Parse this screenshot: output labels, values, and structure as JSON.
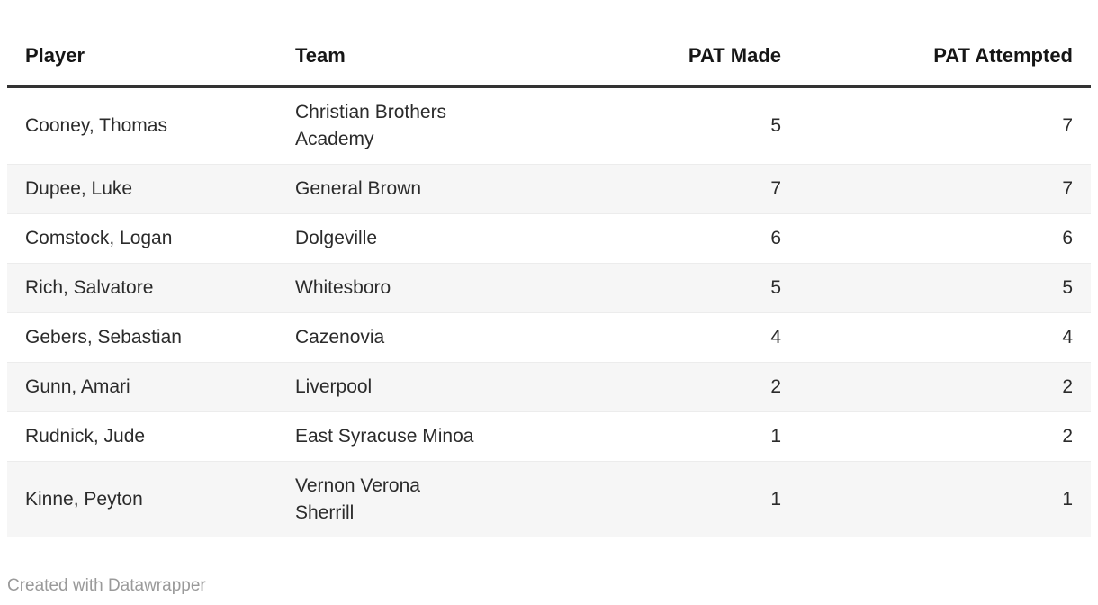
{
  "chart_data": {
    "type": "table",
    "columns": [
      "Player",
      "Team",
      "PAT Made",
      "PAT Attempted"
    ],
    "rows": [
      {
        "player": "Cooney, Thomas",
        "team": "Christian Brothers\nAcademy",
        "pat_made": 5,
        "pat_attempted": 7
      },
      {
        "player": "Dupee, Luke",
        "team": "General Brown",
        "pat_made": 7,
        "pat_attempted": 7
      },
      {
        "player": "Comstock, Logan",
        "team": "Dolgeville",
        "pat_made": 6,
        "pat_attempted": 6
      },
      {
        "player": "Rich, Salvatore",
        "team": "Whitesboro",
        "pat_made": 5,
        "pat_attempted": 5
      },
      {
        "player": "Gebers, Sebastian",
        "team": "Cazenovia",
        "pat_made": 4,
        "pat_attempted": 4
      },
      {
        "player": "Gunn, Amari",
        "team": "Liverpool",
        "pat_made": 2,
        "pat_attempted": 2
      },
      {
        "player": "Rudnick, Jude",
        "team": "East Syracuse Minoa",
        "pat_made": 1,
        "pat_attempted": 2
      },
      {
        "player": "Kinne, Peyton",
        "team": "Vernon Verona\nSherrill",
        "pat_made": 1,
        "pat_attempted": 1
      }
    ],
    "layout": {
      "striped_rows": true,
      "stripe_color": "#f6f6f6",
      "header_border_color": "#333333",
      "row_separator_color": "#ececec",
      "body_text_color": "#2b2b2b",
      "header_text_color": "#161616",
      "numeric_alignment": "right"
    }
  },
  "footer": {
    "attribution": "Created with Datawrapper",
    "attribution_color": "#9a9a9a"
  }
}
